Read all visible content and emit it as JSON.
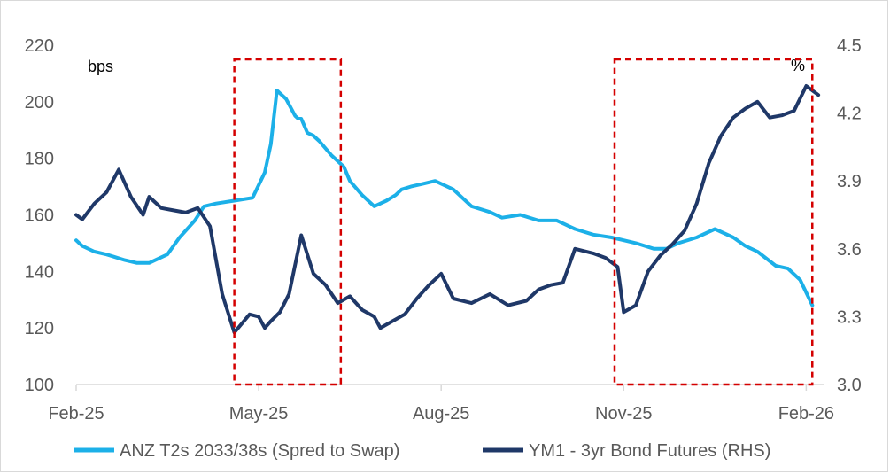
{
  "chart_data": {
    "type": "line",
    "left_unit": "bps",
    "right_unit": "%",
    "x_tick_labels": [
      "Feb-25",
      "May-25",
      "Aug-25",
      "Nov-25",
      "Feb-26"
    ],
    "left_axis": {
      "min": 100,
      "max": 220,
      "ticks": [
        100,
        120,
        140,
        160,
        180,
        200,
        220
      ]
    },
    "right_axis": {
      "min": 3.0,
      "max": 4.5,
      "tick_labels": [
        "3.0",
        "3.3",
        "3.6",
        "3.9",
        "4.2",
        "4.5"
      ]
    },
    "x_range": [
      0,
      12.3
    ],
    "series": [
      {
        "name": "ANZ T2s 2033/38s (Spred to Swap)",
        "axis": "left",
        "color": "#1cb0e8",
        "x": [
          0,
          0.1,
          0.3,
          0.5,
          0.8,
          1.0,
          1.2,
          1.5,
          1.7,
          1.95,
          2.1,
          2.3,
          2.6,
          2.9,
          3.1,
          3.2,
          3.3,
          3.45,
          3.6,
          3.65,
          3.7,
          3.8,
          3.9,
          4.0,
          4.2,
          4.4,
          4.5,
          4.7,
          4.9,
          5.0,
          5.1,
          5.25,
          5.35,
          5.5,
          5.7,
          5.9,
          6.2,
          6.5,
          6.8,
          7.0,
          7.3,
          7.6,
          7.9,
          8.2,
          8.5,
          8.8,
          9.0,
          9.2,
          9.5,
          9.7,
          9.9,
          10.2,
          10.5,
          10.8,
          11.0,
          11.2,
          11.5,
          11.7,
          11.9,
          12.1
        ],
        "values": [
          151,
          149,
          147,
          146,
          144,
          143,
          143,
          146,
          152,
          158,
          163,
          164,
          165,
          166,
          175,
          185,
          204,
          201,
          195,
          194,
          194,
          189,
          188,
          186,
          181,
          177,
          172,
          167,
          163,
          164,
          165,
          167,
          169,
          170,
          171,
          172,
          169,
          163,
          161,
          159,
          160,
          158,
          158,
          155,
          153,
          152,
          151,
          150,
          148,
          148,
          150,
          152,
          155,
          152,
          149,
          147,
          142,
          141,
          137,
          128
        ]
      },
      {
        "name": "YM1 - 3yr Bond Futures (RHS)",
        "axis": "right",
        "color": "#1f3868",
        "x": [
          0,
          0.1,
          0.3,
          0.5,
          0.7,
          0.9,
          1.1,
          1.2,
          1.4,
          1.6,
          1.8,
          2.0,
          2.2,
          2.4,
          2.6,
          2.85,
          3.0,
          3.1,
          3.2,
          3.35,
          3.5,
          3.7,
          3.9,
          4.1,
          4.3,
          4.5,
          4.7,
          4.9,
          5.0,
          5.2,
          5.4,
          5.6,
          5.8,
          6.0,
          6.2,
          6.5,
          6.8,
          7.1,
          7.4,
          7.6,
          7.8,
          8.0,
          8.2,
          8.5,
          8.7,
          8.9,
          9.0,
          9.2,
          9.4,
          9.6,
          9.8,
          10.0,
          10.2,
          10.4,
          10.6,
          10.8,
          11.0,
          11.2,
          11.4,
          11.6,
          11.8,
          12.0,
          12.2
        ],
        "values": [
          3.75,
          3.73,
          3.8,
          3.85,
          3.95,
          3.83,
          3.75,
          3.83,
          3.78,
          3.77,
          3.76,
          3.78,
          3.7,
          3.4,
          3.23,
          3.31,
          3.3,
          3.25,
          3.28,
          3.32,
          3.4,
          3.66,
          3.49,
          3.44,
          3.36,
          3.39,
          3.33,
          3.3,
          3.25,
          3.28,
          3.31,
          3.38,
          3.44,
          3.49,
          3.38,
          3.36,
          3.4,
          3.35,
          3.37,
          3.42,
          3.44,
          3.45,
          3.6,
          3.58,
          3.56,
          3.52,
          3.32,
          3.35,
          3.5,
          3.57,
          3.62,
          3.68,
          3.8,
          3.98,
          4.1,
          4.18,
          4.22,
          4.25,
          4.18,
          4.19,
          4.21,
          4.32,
          4.28
        ]
      }
    ],
    "highlight_boxes": [
      {
        "x_start": 2.6,
        "x_end": 4.35,
        "y_top": 215,
        "y_bottom": 100
      },
      {
        "x_start": 8.85,
        "x_end": 12.1,
        "y_top": 215,
        "y_bottom": 100
      }
    ]
  }
}
